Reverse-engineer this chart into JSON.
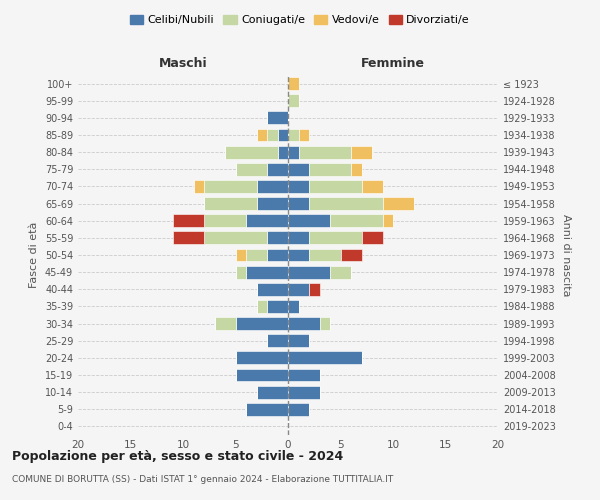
{
  "age_groups": [
    "0-4",
    "5-9",
    "10-14",
    "15-19",
    "20-24",
    "25-29",
    "30-34",
    "35-39",
    "40-44",
    "45-49",
    "50-54",
    "55-59",
    "60-64",
    "65-69",
    "70-74",
    "75-79",
    "80-84",
    "85-89",
    "90-94",
    "95-99",
    "100+"
  ],
  "birth_years": [
    "2019-2023",
    "2014-2018",
    "2009-2013",
    "2004-2008",
    "1999-2003",
    "1994-1998",
    "1989-1993",
    "1984-1988",
    "1979-1983",
    "1974-1978",
    "1969-1973",
    "1964-1968",
    "1959-1963",
    "1954-1958",
    "1949-1953",
    "1944-1948",
    "1939-1943",
    "1934-1938",
    "1929-1933",
    "1924-1928",
    "≤ 1923"
  ],
  "colors": {
    "celibi": "#4a7aac",
    "coniugati": "#c5d8a4",
    "vedovi": "#f0c060",
    "divorziati": "#c0392b"
  },
  "maschi": {
    "celibi": [
      0,
      4,
      3,
      5,
      5,
      2,
      5,
      2,
      3,
      4,
      2,
      2,
      4,
      3,
      3,
      2,
      1,
      1,
      2,
      0,
      0
    ],
    "coniugati": [
      0,
      0,
      0,
      0,
      0,
      0,
      2,
      1,
      0,
      1,
      2,
      6,
      4,
      5,
      5,
      3,
      5,
      1,
      0,
      0,
      0
    ],
    "vedovi": [
      0,
      0,
      0,
      0,
      0,
      0,
      0,
      0,
      0,
      0,
      1,
      0,
      0,
      0,
      1,
      0,
      0,
      1,
      0,
      0,
      0
    ],
    "divorziati": [
      0,
      0,
      0,
      0,
      0,
      0,
      0,
      0,
      0,
      0,
      0,
      3,
      3,
      0,
      0,
      0,
      0,
      0,
      0,
      0,
      0
    ]
  },
  "femmine": {
    "celibi": [
      0,
      2,
      3,
      3,
      7,
      2,
      3,
      1,
      2,
      4,
      2,
      2,
      4,
      2,
      2,
      2,
      1,
      0,
      0,
      0,
      0
    ],
    "coniugati": [
      0,
      0,
      0,
      0,
      0,
      0,
      1,
      0,
      0,
      2,
      3,
      5,
      5,
      7,
      5,
      4,
      5,
      1,
      0,
      1,
      0
    ],
    "vedovi": [
      0,
      0,
      0,
      0,
      0,
      0,
      0,
      0,
      0,
      0,
      0,
      0,
      1,
      3,
      2,
      1,
      2,
      1,
      0,
      0,
      1
    ],
    "divorziati": [
      0,
      0,
      0,
      0,
      0,
      0,
      0,
      0,
      1,
      0,
      2,
      2,
      0,
      0,
      0,
      0,
      0,
      0,
      0,
      0,
      0
    ]
  },
  "xlim": [
    -20,
    20
  ],
  "xticks": [
    -20,
    -15,
    -10,
    -5,
    0,
    5,
    10,
    15,
    20
  ],
  "xtick_labels": [
    "20",
    "15",
    "10",
    "5",
    "0",
    "5",
    "10",
    "15",
    "20"
  ],
  "title": "Popolazione per età, sesso e stato civile - 2024",
  "subtitle": "COMUNE DI BORUTTA (SS) - Dati ISTAT 1° gennaio 2024 - Elaborazione TUTTITALIA.IT",
  "ylabel_left": "Fasce di età",
  "ylabel_right": "Anni di nascita",
  "label_maschi": "Maschi",
  "label_femmine": "Femmine",
  "legend_labels": [
    "Celibi/Nubili",
    "Coniugati/e",
    "Vedovi/e",
    "Divorziati/e"
  ],
  "bg_color": "#f5f5f5",
  "grid_color": "#cccccc"
}
